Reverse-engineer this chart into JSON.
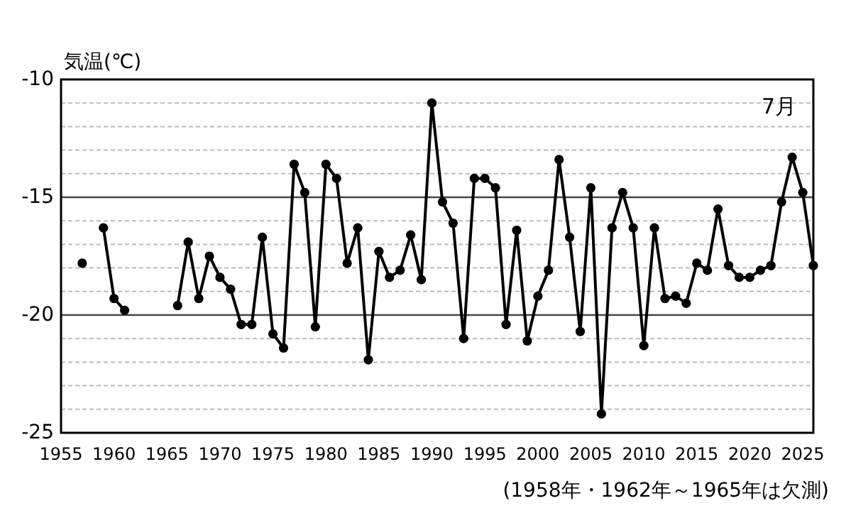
{
  "chart_data": {
    "type": "line",
    "ylabel": "気温(℃)",
    "annotations": [
      "7月",
      "(1958年・1962年～1965年は欠測)"
    ],
    "x": [
      1957,
      1958,
      1959,
      1960,
      1961,
      1962,
      1963,
      1964,
      1965,
      1966,
      1967,
      1968,
      1969,
      1970,
      1971,
      1972,
      1973,
      1974,
      1975,
      1976,
      1977,
      1978,
      1979,
      1980,
      1981,
      1982,
      1983,
      1984,
      1985,
      1986,
      1987,
      1988,
      1989,
      1990,
      1991,
      1992,
      1993,
      1994,
      1995,
      1996,
      1997,
      1998,
      1999,
      2000,
      2001,
      2002,
      2003,
      2004,
      2005,
      2006,
      2007,
      2008,
      2009,
      2010,
      2011,
      2012,
      2013,
      2014,
      2015,
      2016,
      2017,
      2018,
      2019,
      2020,
      2021,
      2022,
      2023,
      2024,
      2025,
      2026
    ],
    "series": [
      {
        "color": "#000000",
        "values": [
          -17.8,
          null,
          -16.3,
          -19.3,
          -19.8,
          null,
          null,
          null,
          null,
          -19.6,
          -16.9,
          -19.3,
          -17.5,
          -18.4,
          -18.9,
          -20.4,
          -20.4,
          -16.7,
          -20.8,
          -21.4,
          -13.6,
          -14.8,
          -20.5,
          -13.6,
          -14.2,
          -17.8,
          -16.3,
          -21.9,
          -17.3,
          -18.4,
          -18.1,
          -16.6,
          -18.5,
          -11.0,
          -15.2,
          -16.1,
          -21.0,
          -14.2,
          -14.2,
          -14.6,
          -20.4,
          -16.4,
          -21.1,
          -19.2,
          -18.1,
          -13.4,
          -16.7,
          -20.7,
          -14.6,
          -24.2,
          -16.3,
          -14.8,
          -16.3,
          -21.3,
          -16.3,
          -19.3,
          -19.2,
          -19.5,
          -17.8,
          -18.1,
          -15.5,
          -17.9,
          -18.4,
          -18.4,
          -18.1,
          -17.9,
          -15.2,
          -13.3,
          -14.8,
          -17.9
        ]
      }
    ],
    "xlim": [
      1955,
      2026
    ],
    "xticks": [
      1955,
      1960,
      1965,
      1970,
      1975,
      1980,
      1985,
      1990,
      1995,
      2000,
      2005,
      2010,
      2015,
      2020,
      2025
    ],
    "ylim": [
      -25,
      -10
    ],
    "yticks": [
      -10,
      {
        "value": -11,
        "label": null
      },
      {
        "value": -12,
        "label": null
      },
      {
        "value": -13,
        "label": null
      },
      {
        "value": -14,
        "label": null
      },
      -15,
      {
        "value": -16,
        "label": null
      },
      {
        "value": -17,
        "label": null
      },
      {
        "value": -18,
        "label": null
      },
      {
        "value": -19,
        "label": null
      },
      -20,
      {
        "value": -21,
        "label": null
      },
      {
        "value": -22,
        "label": null
      },
      {
        "value": -23,
        "label": null
      },
      {
        "value": -24,
        "label": null
      },
      -25
    ],
    "grid": "y",
    "marker": "circle",
    "line_style": "solid"
  }
}
